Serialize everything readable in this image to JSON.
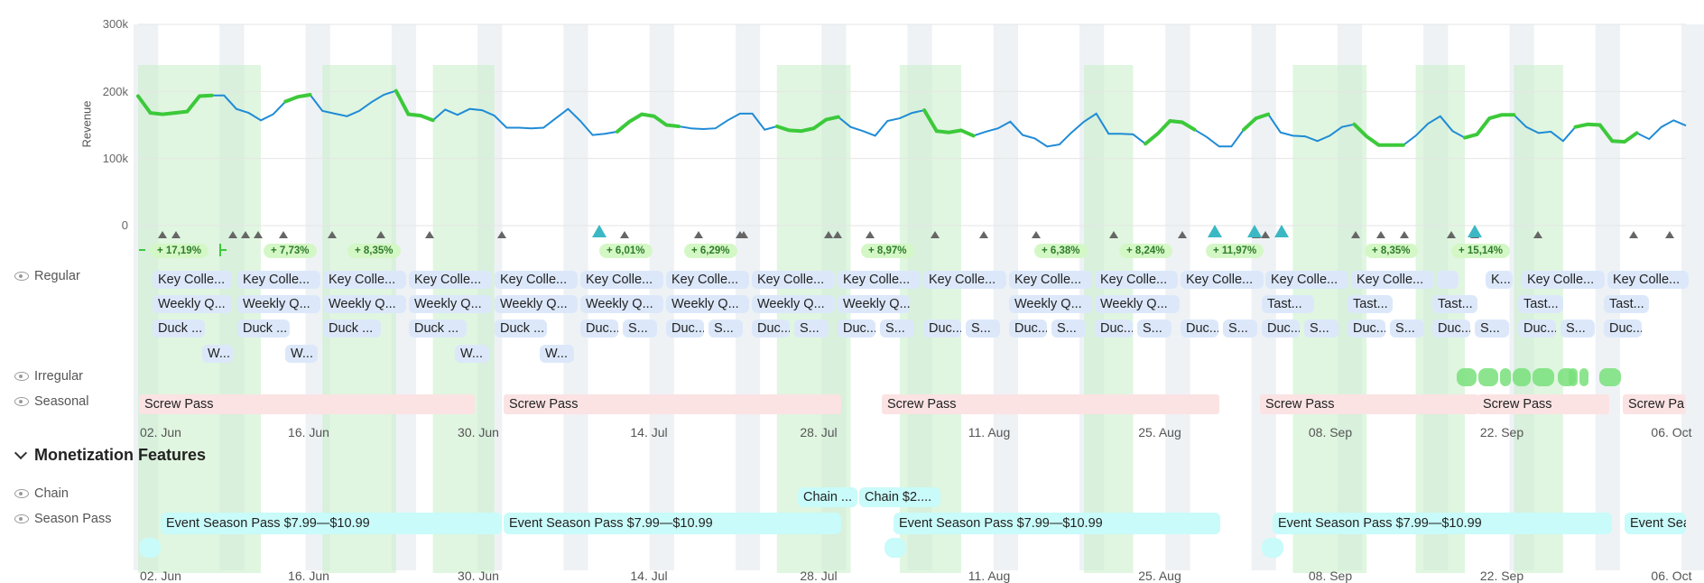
{
  "chart_data": {
    "type": "line",
    "ylabel": "Revenue",
    "yticks": [
      "300k",
      "200k",
      "100k",
      "0"
    ],
    "ylim": [
      0,
      300000
    ],
    "x_start": "2025-05-29",
    "x_end": "2025-10-08",
    "series": [
      {
        "values": [
          193000,
          168000,
          166000,
          168000,
          170000,
          193000,
          194000,
          194000,
          174000,
          168000,
          157000,
          166000,
          185000,
          192000,
          195000,
          171000,
          167000,
          163000,
          171000,
          184000,
          195000,
          201000,
          166000,
          164000,
          157000,
          173000,
          165000,
          174000,
          172000,
          164000,
          146000,
          146000,
          145000,
          146000,
          160000,
          174000,
          156000,
          135000,
          137000,
          140000,
          155000,
          166000,
          163000,
          150000,
          148000,
          145000,
          144000,
          145000,
          157000,
          167000,
          167000,
          143000,
          148000,
          142000,
          141000,
          145000,
          158000,
          162000,
          147000,
          141000,
          134000,
          156000,
          160000,
          168000,
          172000,
          141000,
          139000,
          142000,
          134000,
          140000,
          145000,
          155000,
          135000,
          130000,
          118000,
          121000,
          139000,
          155000,
          167000,
          137000,
          137000,
          136000,
          122000,
          137000,
          156000,
          154000,
          143000,
          132000,
          118000,
          118000,
          143000,
          160000,
          166000,
          139000,
          134000,
          133000,
          126000,
          134000,
          147000,
          151000,
          133000,
          120000,
          120000,
          120000,
          134000,
          152000,
          163000,
          141000,
          131000,
          136000,
          160000,
          165000,
          165000,
          147000,
          138000,
          140000,
          126000,
          147000,
          151000,
          150000,
          126000,
          125000,
          138000,
          129000,
          147000,
          157000,
          149000
        ]
      }
    ]
  },
  "promos": [
    "+ 17,19%",
    "+ 7,73%",
    "+ 8,35%",
    "+ 6,01%",
    "+ 6,29%",
    "+ 8,97%",
    "+ 6,38%",
    "+ 8,24%",
    "+ 11,97%",
    "+ 8,35%",
    "+ 15,14%"
  ],
  "xticks": [
    "02. Jun",
    "16. Jun",
    "30. Jun",
    "14. Jul",
    "28. Jul",
    "11. Aug",
    "25. Aug",
    "08. Sep",
    "22. Sep",
    "06. Oct"
  ],
  "rows": {
    "regular": "Regular",
    "irregular": "Irregular",
    "seasonal": "Seasonal",
    "chain": "Chain",
    "season_pass": "Season Pass"
  },
  "section_title": "Monetization Features",
  "events": {
    "key": "Key Colle...",
    "key_short": "K...",
    "weekly": "Weekly Q...",
    "duck": "Duck ...",
    "duck2": "Duc...",
    "s": "S...",
    "w": "W...",
    "tast": "Tast...",
    "screw": "Screw Pass",
    "screw_cut": "Screw Pa"
  },
  "features": {
    "season_pass": "Event Season Pass $7.99—$10.99",
    "season_pass_cut": "Event Sea",
    "chain1": "Chain ...",
    "chain2": "Chain $2...."
  }
}
